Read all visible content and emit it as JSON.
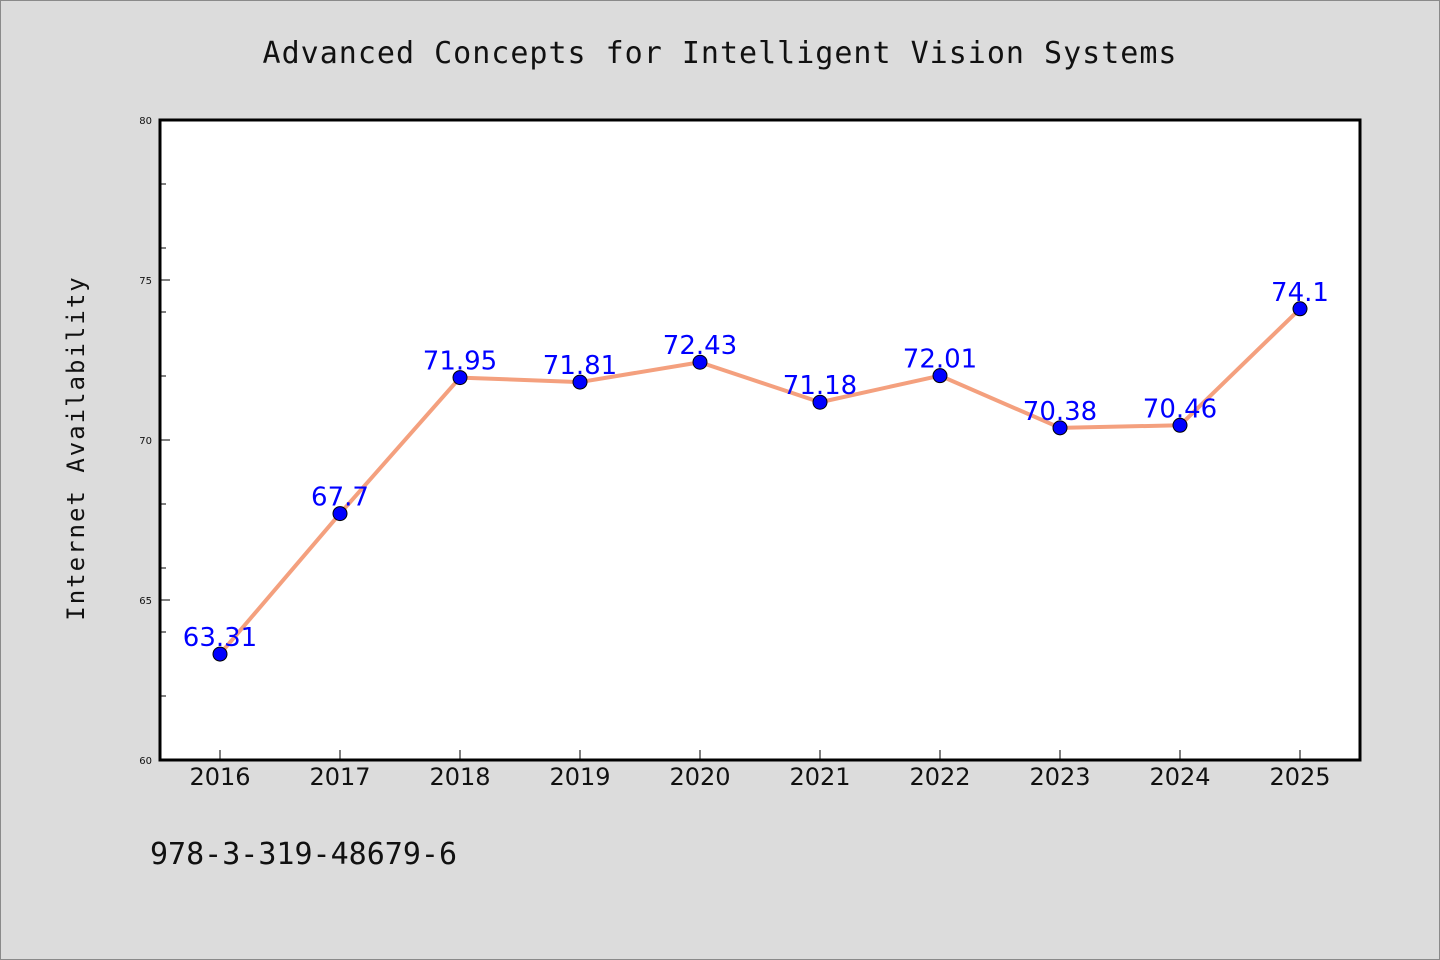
{
  "chart_data": {
    "type": "line",
    "title": "Advanced Concepts for Intelligent Vision Systems",
    "xlabel": "",
    "ylabel": "Internet Availability",
    "categories": [
      "2016",
      "2017",
      "2018",
      "2019",
      "2020",
      "2021",
      "2022",
      "2023",
      "2024",
      "2025"
    ],
    "series": [
      {
        "values": [
          63.31,
          67.7,
          71.95,
          71.81,
          72.43,
          71.18,
          72.01,
          70.38,
          70.46,
          74.1
        ],
        "labels": [
          "63.31",
          "67.7",
          "71.95",
          "71.81",
          "72.43",
          "71.18",
          "72.01",
          "70.38",
          "70.46",
          "74.1"
        ]
      }
    ],
    "ylim": [
      60,
      80
    ],
    "yticks": [
      "60",
      "65",
      "70",
      "75",
      "80"
    ],
    "grid": false,
    "colors": {
      "line": "#f4a07e",
      "marker": "#0000ff",
      "label": "#0000ff"
    }
  },
  "footer": {
    "isbn": "978-3-319-48679-6"
  }
}
